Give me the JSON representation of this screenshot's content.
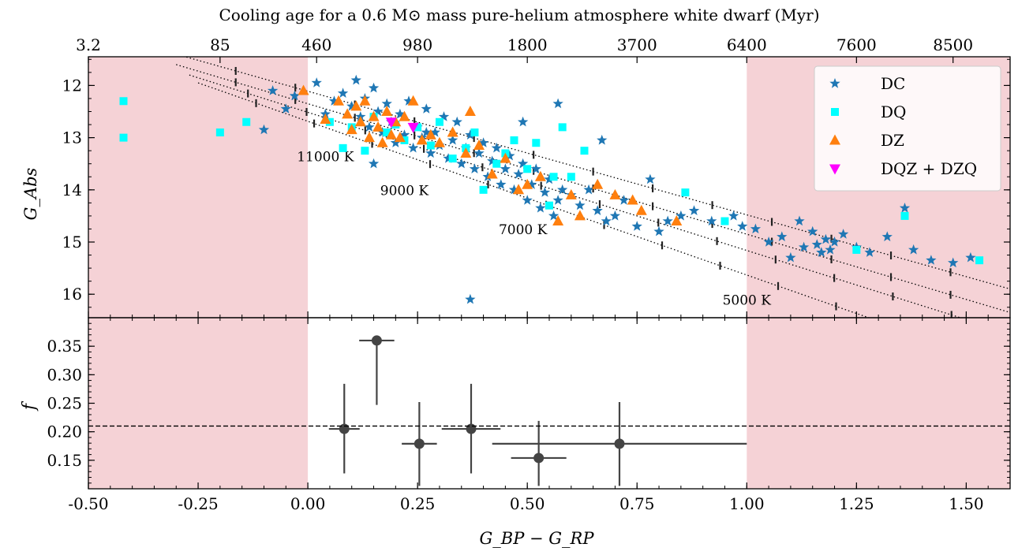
{
  "chart_data": [
    {
      "type": "scatter",
      "panel": "top",
      "title": "Cooling age for a 0.6 M⊙ mass pure-helium atmosphere white dwarf (Myr)",
      "xlabel": "G_BP − G_RP",
      "ylabel": "G_Abs",
      "xlim": [
        -0.5,
        1.6
      ],
      "ylim": [
        16.45,
        11.45
      ],
      "y_inverted": true,
      "grid": false,
      "legend_position": "top-right",
      "x_ticks": [
        "-0.50",
        "-0.25",
        "0.00",
        "0.25",
        "0.50",
        "0.75",
        "1.00",
        "1.25",
        "1.50"
      ],
      "y_ticks": [
        "12",
        "13",
        "14",
        "15",
        "16"
      ],
      "top_axis": {
        "ticks": [
          {
            "x": -0.5,
            "label": "3.2"
          },
          {
            "x": -0.2,
            "label": "85"
          },
          {
            "x": 0.02,
            "label": "460"
          },
          {
            "x": 0.25,
            "label": "980"
          },
          {
            "x": 0.5,
            "label": "1800"
          },
          {
            "x": 0.75,
            "label": "3700"
          },
          {
            "x": 1.0,
            "label": "6400"
          },
          {
            "x": 1.25,
            "label": "7600"
          },
          {
            "x": 1.47,
            "label": "8500"
          }
        ]
      },
      "shaded_regions": [
        [
          -0.5,
          0.0
        ],
        [
          1.0,
          1.6
        ]
      ],
      "shade_color": "#f5d2d6",
      "cooling_tracks": [
        {
          "x": [
            -0.3,
            1.6
          ],
          "y": [
            11.4,
            15.9
          ]
        },
        {
          "x": [
            -0.3,
            1.6
          ],
          "y": [
            11.6,
            16.35
          ]
        },
        {
          "x": [
            -0.27,
            1.6
          ],
          "y": [
            11.8,
            16.75
          ]
        },
        {
          "x": [
            -0.25,
            1.6
          ],
          "y": [
            11.95,
            17.4
          ]
        }
      ],
      "isotherm_labels": [
        {
          "text": "11000 K",
          "x": 0.04,
          "y": 13.45
        },
        {
          "text": "9000 K",
          "x": 0.22,
          "y": 14.1
        },
        {
          "text": "7000 K",
          "x": 0.49,
          "y": 14.85
        },
        {
          "text": "5000 K",
          "x": 1.0,
          "y": 16.2
        }
      ],
      "series": [
        {
          "name": "DC",
          "marker": "star",
          "color": "#1f77b4",
          "x": [
            -0.08,
            -0.05,
            -0.03,
            -0.1,
            0.02,
            0.04,
            0.06,
            0.08,
            0.1,
            0.11,
            0.12,
            0.13,
            0.14,
            0.15,
            0.16,
            0.17,
            0.18,
            0.19,
            0.2,
            0.21,
            0.22,
            0.23,
            0.24,
            0.25,
            0.26,
            0.27,
            0.28,
            0.29,
            0.3,
            0.31,
            0.32,
            0.33,
            0.34,
            0.35,
            0.36,
            0.37,
            0.38,
            0.39,
            0.4,
            0.41,
            0.42,
            0.43,
            0.44,
            0.45,
            0.46,
            0.47,
            0.48,
            0.49,
            0.5,
            0.51,
            0.52,
            0.53,
            0.54,
            0.55,
            0.56,
            0.57,
            0.58,
            0.6,
            0.62,
            0.64,
            0.66,
            0.68,
            0.7,
            0.72,
            0.75,
            0.78,
            0.8,
            0.82,
            0.85,
            0.88,
            0.92,
            0.97,
            0.99,
            1.02,
            1.05,
            1.08,
            1.1,
            1.12,
            1.13,
            1.15,
            1.16,
            1.17,
            1.18,
            1.19,
            1.2,
            1.22,
            1.25,
            1.28,
            1.32,
            1.36,
            1.38,
            1.42,
            1.47,
            1.51,
            0.37,
            0.57,
            0.67,
            0.49,
            0.27,
            0.15
          ],
          "y": [
            12.1,
            12.45,
            12.2,
            12.85,
            11.95,
            12.55,
            12.3,
            12.15,
            12.4,
            11.9,
            12.6,
            12.25,
            12.8,
            12.05,
            12.5,
            12.9,
            12.35,
            12.7,
            13.1,
            12.55,
            12.95,
            12.3,
            13.2,
            12.8,
            13.0,
            12.45,
            13.3,
            12.9,
            13.15,
            12.6,
            13.4,
            13.05,
            12.7,
            13.5,
            13.2,
            12.95,
            13.6,
            13.3,
            13.1,
            13.75,
            13.45,
            13.2,
            13.9,
            13.6,
            13.35,
            14.0,
            13.7,
            13.5,
            14.2,
            13.9,
            13.6,
            14.35,
            14.05,
            13.8,
            14.5,
            14.2,
            14.0,
            14.1,
            14.3,
            14.0,
            14.4,
            14.6,
            14.5,
            14.2,
            14.7,
            13.8,
            14.8,
            14.6,
            14.5,
            14.4,
            14.6,
            14.5,
            14.7,
            14.75,
            15.0,
            14.9,
            15.3,
            14.6,
            15.1,
            14.8,
            15.05,
            15.2,
            14.95,
            15.15,
            15.0,
            14.85,
            15.1,
            15.2,
            14.9,
            14.35,
            15.15,
            15.35,
            15.4,
            15.3,
            16.1,
            12.35,
            13.05,
            12.7,
            12.9,
            13.5
          ]
        },
        {
          "name": "DQ",
          "marker": "square",
          "color": "#00ffff",
          "x": [
            -0.42,
            -0.42,
            -0.2,
            -0.14,
            0.05,
            0.08,
            0.1,
            0.13,
            0.15,
            0.18,
            0.2,
            0.22,
            0.25,
            0.28,
            0.3,
            0.33,
            0.36,
            0.38,
            0.4,
            0.43,
            0.45,
            0.47,
            0.5,
            0.52,
            0.55,
            0.56,
            0.58,
            0.6,
            0.63,
            0.86,
            0.95,
            1.25,
            1.36,
            1.53
          ],
          "y": [
            12.3,
            13.0,
            12.9,
            12.7,
            12.7,
            13.2,
            12.8,
            13.25,
            12.6,
            12.9,
            12.75,
            13.05,
            12.8,
            13.15,
            12.7,
            13.4,
            13.2,
            12.9,
            14.0,
            13.5,
            13.3,
            13.05,
            13.6,
            13.1,
            14.3,
            13.75,
            12.8,
            13.75,
            13.25,
            14.05,
            14.6,
            15.15,
            14.5,
            15.35
          ]
        },
        {
          "name": "DZ",
          "marker": "triangle",
          "color": "#ff7f0e",
          "x": [
            -0.01,
            0.04,
            0.07,
            0.09,
            0.1,
            0.11,
            0.12,
            0.13,
            0.14,
            0.15,
            0.16,
            0.17,
            0.18,
            0.19,
            0.2,
            0.21,
            0.22,
            0.24,
            0.26,
            0.28,
            0.3,
            0.33,
            0.36,
            0.39,
            0.42,
            0.45,
            0.48,
            0.5,
            0.53,
            0.57,
            0.6,
            0.62,
            0.66,
            0.7,
            0.74,
            0.76,
            0.84,
            0.37
          ],
          "y": [
            12.1,
            12.65,
            12.3,
            12.55,
            12.85,
            12.4,
            12.7,
            12.3,
            13.0,
            12.6,
            12.8,
            13.1,
            12.5,
            12.95,
            12.7,
            13.0,
            12.6,
            12.3,
            13.05,
            12.95,
            13.1,
            12.9,
            13.3,
            13.15,
            13.7,
            13.4,
            14.0,
            13.9,
            13.75,
            14.6,
            14.1,
            14.5,
            13.9,
            14.1,
            14.2,
            14.4,
            14.6,
            12.5
          ],
          "note_order": "approximate"
        },
        {
          "name": "DQZ + DZQ",
          "marker": "triangle-down",
          "color": "#ff00ff",
          "x": [
            0.19,
            0.24
          ],
          "y": [
            12.7,
            12.8
          ]
        }
      ]
    },
    {
      "type": "scatter",
      "panel": "bottom",
      "xlabel": "G_BP − G_RP",
      "ylabel": "f",
      "xlim": [
        -0.5,
        1.6
      ],
      "ylim": [
        0.1,
        0.4
      ],
      "grid": false,
      "x_ticks": [
        "-0.50",
        "-0.25",
        "0.00",
        "0.25",
        "0.50",
        "0.75",
        "1.00",
        "1.25",
        "1.50"
      ],
      "y_ticks": [
        "0.15",
        "0.20",
        "0.25",
        "0.30",
        "0.35"
      ],
      "shaded_regions": [
        [
          -0.5,
          0.0
        ],
        [
          1.0,
          1.6
        ]
      ],
      "hline": 0.21,
      "points": [
        {
          "x": 0.083,
          "y": 0.205,
          "xerr": 0.035,
          "y_lo": 0.127,
          "y_hi": 0.284
        },
        {
          "x": 0.157,
          "y": 0.36,
          "xerr": 0.04,
          "y_lo": 0.247,
          "y_hi": 0.36
        },
        {
          "x": 0.254,
          "y": 0.179,
          "xerr": 0.04,
          "y_lo": 0.105,
          "y_hi": 0.252
        },
        {
          "x": 0.372,
          "y": 0.205,
          "xerr": 0.067,
          "y_lo": 0.127,
          "y_hi": 0.284
        },
        {
          "x": 0.526,
          "y": 0.154,
          "xerr": 0.063,
          "y_lo": 0.105,
          "y_hi": 0.219
        },
        {
          "x": 0.71,
          "y": 0.179,
          "xerr": 0.29,
          "y_lo": 0.105,
          "y_hi": 0.252
        }
      ]
    }
  ]
}
